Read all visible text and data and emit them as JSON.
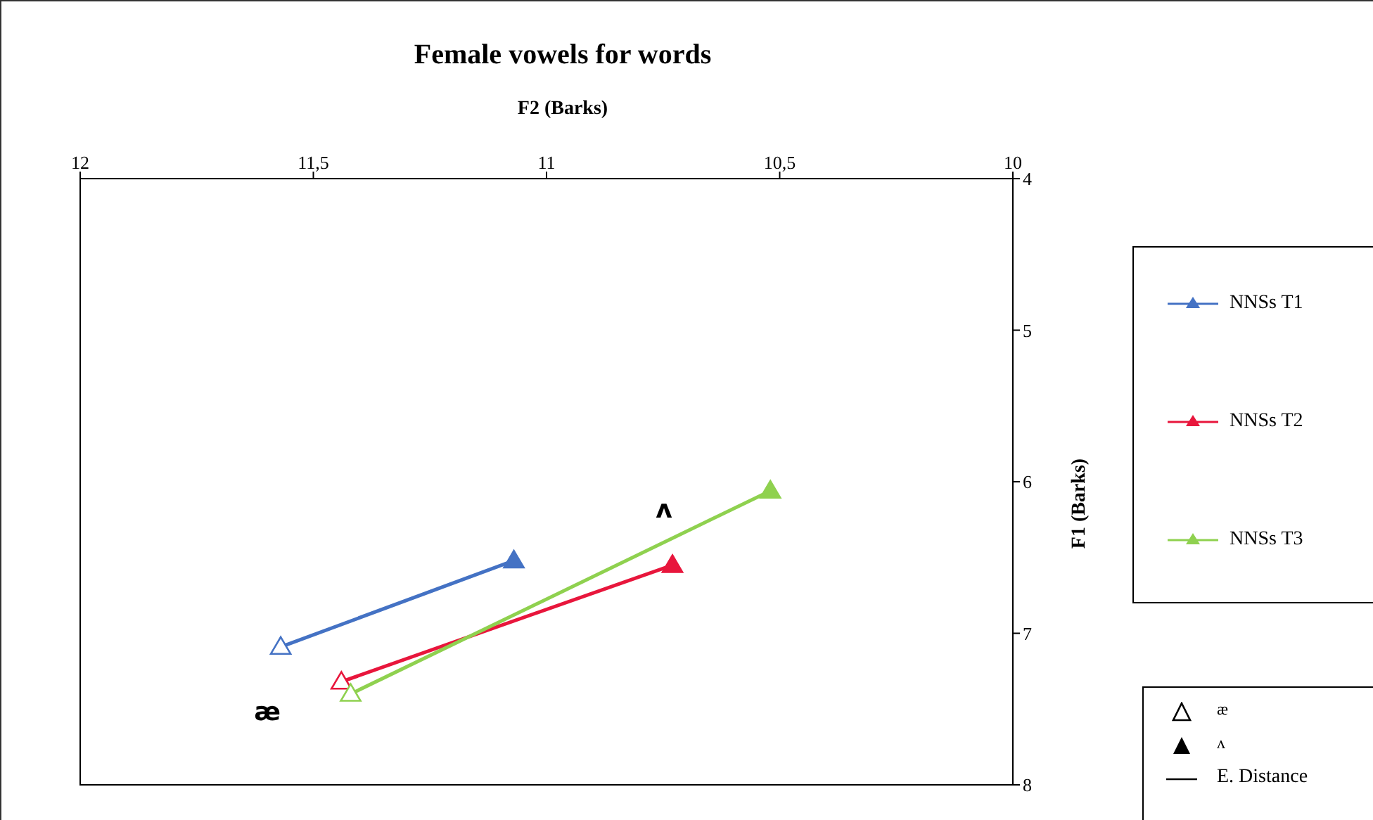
{
  "chart_data": {
    "type": "line",
    "title": "Female vowels for words",
    "xlabel": "F2 (Barks)",
    "ylabel": "F1 (Barks)",
    "xlim": [
      12,
      10
    ],
    "xticks": [
      12,
      {
        "value": 11.5,
        "label": "11,5"
      },
      11,
      {
        "value": 10.5,
        "label": "10,5"
      },
      10
    ],
    "ylim": [
      8,
      4
    ],
    "yticks": [
      4,
      5,
      6,
      7,
      8
    ],
    "grid": false,
    "legend": "right",
    "marker": "triangle",
    "line_style": "solid",
    "series": [
      {
        "name": "NNSs T1",
        "color": "#4472c4",
        "x": [
          11.57,
          11.07
        ],
        "values": [
          7.09,
          6.52
        ]
      },
      {
        "name": "NNSs T2",
        "color": "#e8163c",
        "x": [
          11.44,
          10.73
        ],
        "values": [
          7.32,
          6.55
        ]
      },
      {
        "name": "NNSs T3",
        "color": "#8fd14f",
        "x": [
          11.42,
          10.52
        ],
        "values": [
          7.4,
          6.06
        ]
      }
    ],
    "annotations": [
      "ʌ",
      "æ",
      "æ",
      "ʌ",
      "E. Distance"
    ]
  }
}
